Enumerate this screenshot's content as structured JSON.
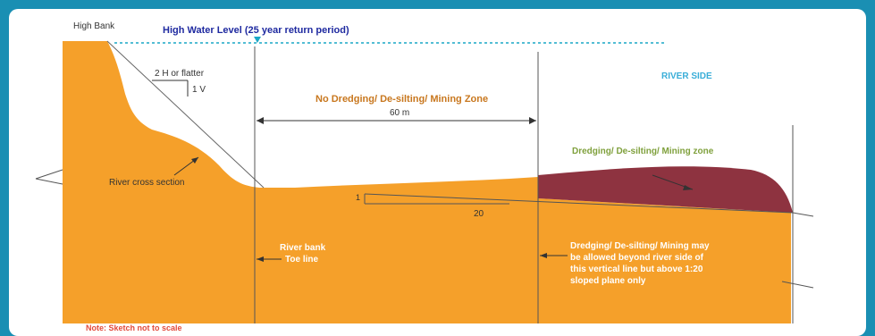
{
  "labels": {
    "high_bank": "High Bank",
    "high_water_level": "High Water Level (25 year return period)",
    "slope_h": "2 H or flatter",
    "slope_v": "1 V",
    "river_side": "RIVER SIDE",
    "no_dredging_zone": "No Dredging/ De-silting/ Mining Zone",
    "distance": "60 m",
    "dredging_zone": "Dredging/ De-silting/ Mining zone",
    "river_cross_section": "River cross section",
    "gradient_rise": "1",
    "gradient_run": "20",
    "toe_line_1": "River bank",
    "toe_line_2": "Toe line",
    "allowed_1": "Dredging/ De-silting/ Mining may",
    "allowed_2": "be  allowed beyond river side of",
    "allowed_3": "this vertical line but above 1:20",
    "allowed_4": "sloped plane only",
    "note": "Note: Sketch not to scale"
  },
  "colors": {
    "frame": "#1a8fb3",
    "earth": "#f5a02a",
    "dredge_zone": "#8e3340",
    "water_level": "#1aa7c6",
    "title_blue": "#1f2aa0",
    "river_side": "#3aaed8",
    "zone_text": "#c8771e",
    "dredge_text": "#7fa03c",
    "note_red": "#e24a3c",
    "white_text": "#ffffff",
    "dark_text": "#333333"
  }
}
